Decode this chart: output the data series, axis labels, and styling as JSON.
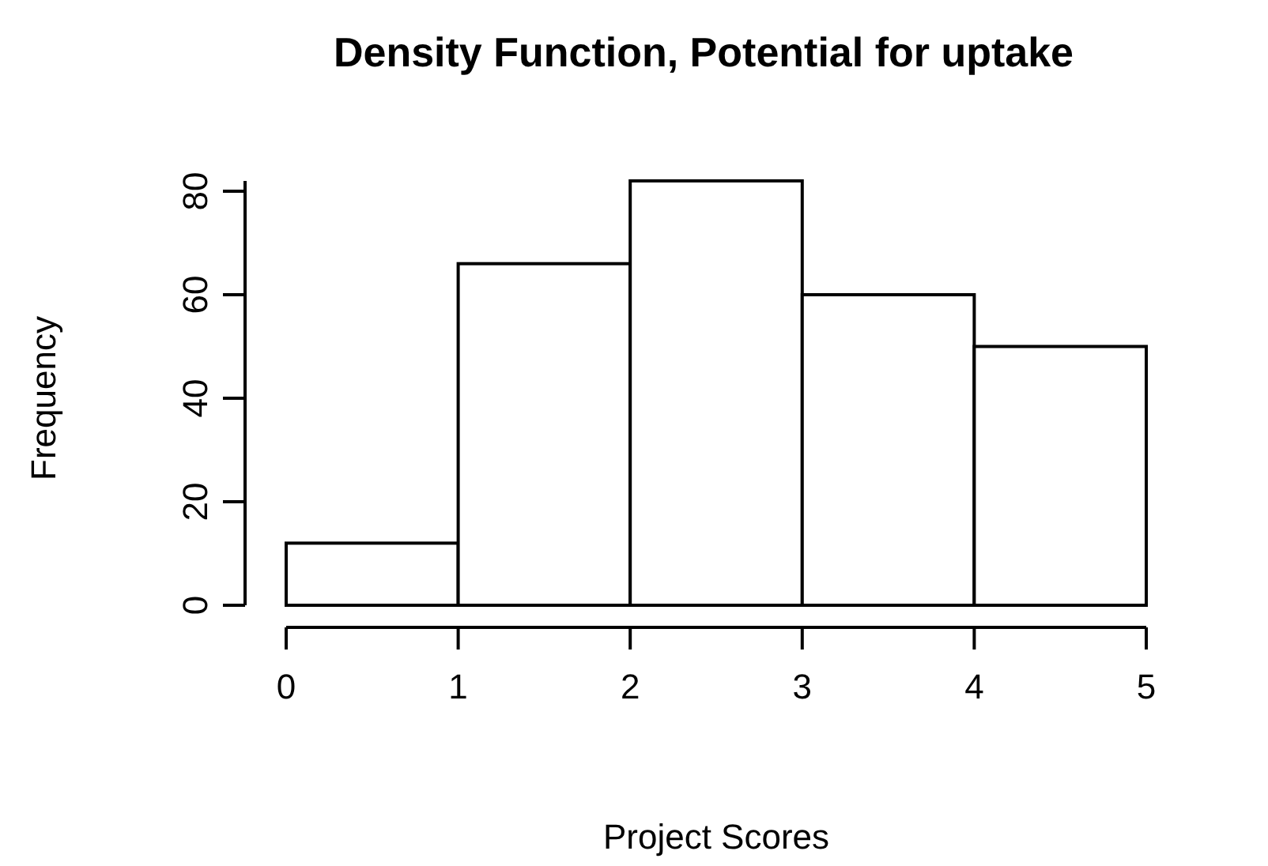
{
  "chart_data": {
    "type": "histogram",
    "title": "Density Function, Potential for uptake",
    "xlabel": "Project Scores",
    "ylabel": "Frequency",
    "bins": [
      0,
      1,
      2,
      3,
      4,
      5
    ],
    "values": [
      12,
      66,
      82,
      60,
      50
    ],
    "color": "#ffffff",
    "xlim": [
      0,
      5
    ],
    "xticks": [
      0,
      1,
      2,
      3,
      4,
      5
    ],
    "ylim": [
      0,
      82
    ],
    "yticks": [
      0,
      20,
      40,
      60,
      80
    ],
    "grid": false
  }
}
